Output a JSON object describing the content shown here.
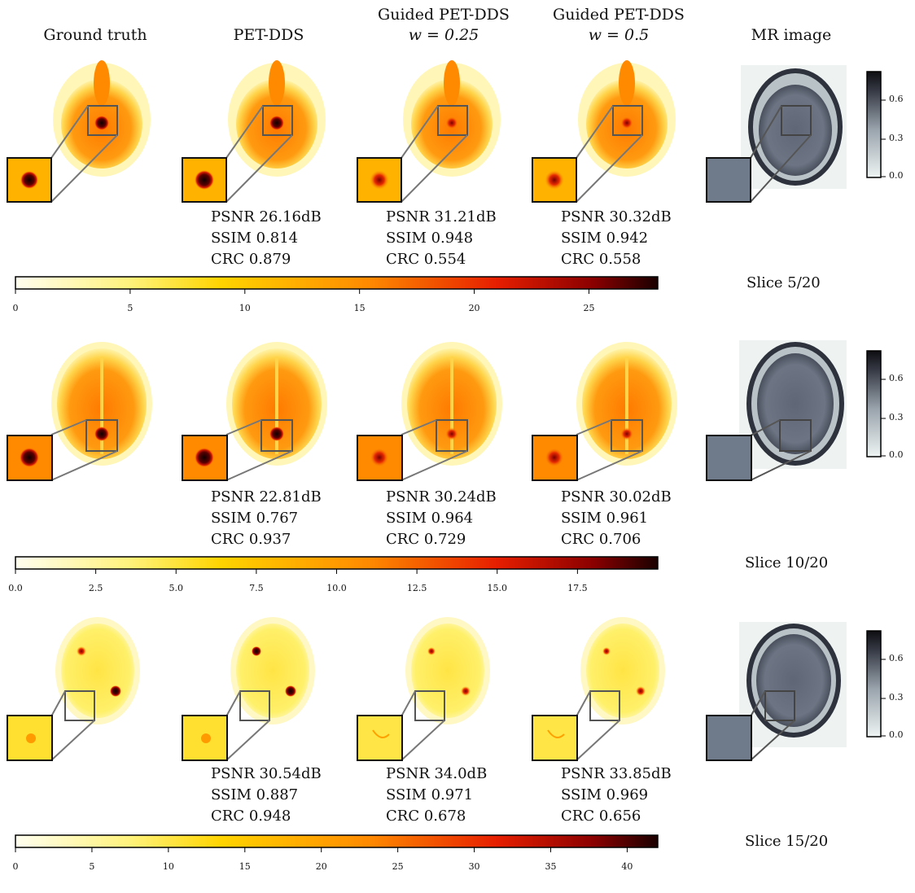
{
  "columns": [
    "Ground truth",
    "PET-DDS",
    "Guided PET-DDS",
    "Guided PET-DDS",
    "MR image"
  ],
  "column_subtitles": [
    "",
    "",
    "w = 0.25",
    "w = 0.5",
    ""
  ],
  "rows": [
    {
      "slice_label": "Slice 5/20",
      "metrics": [
        {
          "psnr": "PSNR 26.16dB",
          "ssim": "SSIM 0.814",
          "crc": "CRC 0.879"
        },
        {
          "psnr": "PSNR 31.21dB",
          "ssim": "SSIM 0.948",
          "crc": "CRC 0.554"
        },
        {
          "psnr": "PSNR 30.32dB",
          "ssim": "SSIM 0.942",
          "crc": "CRC 0.558"
        }
      ],
      "colorbar_ticks": [
        "0",
        "5",
        "10",
        "15",
        "20",
        "25"
      ],
      "colorbar_max": 28
    },
    {
      "slice_label": "Slice 10/20",
      "metrics": [
        {
          "psnr": "PSNR 22.81dB",
          "ssim": "SSIM 0.767",
          "crc": "CRC 0.937"
        },
        {
          "psnr": "PSNR 30.24dB",
          "ssim": "SSIM 0.964",
          "crc": "CRC 0.729"
        },
        {
          "psnr": "PSNR 30.02dB",
          "ssim": "SSIM 0.961",
          "crc": "CRC 0.706"
        }
      ],
      "colorbar_ticks": [
        "0.0",
        "2.5",
        "5.0",
        "7.5",
        "10.0",
        "12.5",
        "15.0",
        "17.5"
      ],
      "colorbar_max": 20
    },
    {
      "slice_label": "Slice 15/20",
      "metrics": [
        {
          "psnr": "PSNR 30.54dB",
          "ssim": "SSIM 0.887",
          "crc": "CRC 0.948"
        },
        {
          "psnr": "PSNR 34.0dB",
          "ssim": "SSIM 0.971",
          "crc": "CRC 0.678"
        },
        {
          "psnr": "PSNR 33.85dB",
          "ssim": "SSIM 0.969",
          "crc": "CRC 0.656"
        }
      ],
      "colorbar_ticks": [
        "0",
        "5",
        "10",
        "15",
        "20",
        "25",
        "30",
        "35",
        "40"
      ],
      "colorbar_max": 42
    }
  ],
  "mr_colorbar_ticks": [
    "0.6",
    "0.3",
    "0.0"
  ],
  "colormap_pet": [
    "#fffef0",
    "#fff27a",
    "#ffd400",
    "#ff8a00",
    "#e61e00",
    "#8a0000",
    "#1a0000"
  ],
  "colormap_mr": [
    "#eef4f3",
    "#9aa4ad",
    "#3b3f4a",
    "#0d0d12"
  ]
}
